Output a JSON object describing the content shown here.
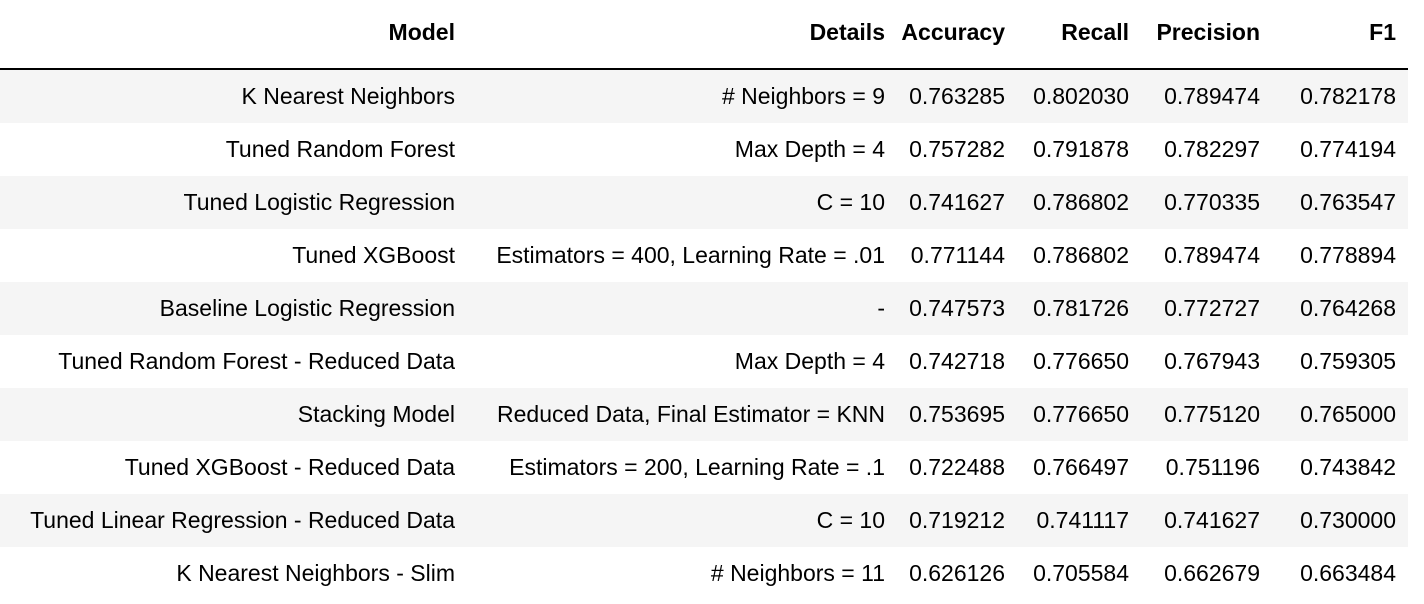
{
  "table": {
    "columns": [
      "Model",
      "Details",
      "Accuracy",
      "Recall",
      "Precision",
      "F1"
    ],
    "rows": [
      [
        "K Nearest Neighbors",
        "# Neighbors = 9",
        "0.763285",
        "0.802030",
        "0.789474",
        "0.782178"
      ],
      [
        "Tuned Random Forest",
        "Max Depth = 4",
        "0.757282",
        "0.791878",
        "0.782297",
        "0.774194"
      ],
      [
        "Tuned Logistic Regression",
        "C = 10",
        "0.741627",
        "0.786802",
        "0.770335",
        "0.763547"
      ],
      [
        "Tuned XGBoost",
        "Estimators = 400, Learning Rate = .01",
        "0.771144",
        "0.786802",
        "0.789474",
        "0.778894"
      ],
      [
        "Baseline Logistic Regression",
        "-",
        "0.747573",
        "0.781726",
        "0.772727",
        "0.764268"
      ],
      [
        "Tuned Random Forest - Reduced Data",
        "Max Depth = 4",
        "0.742718",
        "0.776650",
        "0.767943",
        "0.759305"
      ],
      [
        "Stacking Model",
        "Reduced Data, Final Estimator = KNN",
        "0.753695",
        "0.776650",
        "0.775120",
        "0.765000"
      ],
      [
        "Tuned XGBoost - Reduced Data",
        "Estimators = 200, Learning Rate = .1",
        "0.722488",
        "0.766497",
        "0.751196",
        "0.743842"
      ],
      [
        "Tuned Linear Regression - Reduced Data",
        "C = 10",
        "0.719212",
        "0.741117",
        "0.741627",
        "0.730000"
      ],
      [
        "K Nearest Neighbors - Slim",
        "# Neighbors = 11",
        "0.626126",
        "0.705584",
        "0.662679",
        "0.663484"
      ]
    ]
  }
}
